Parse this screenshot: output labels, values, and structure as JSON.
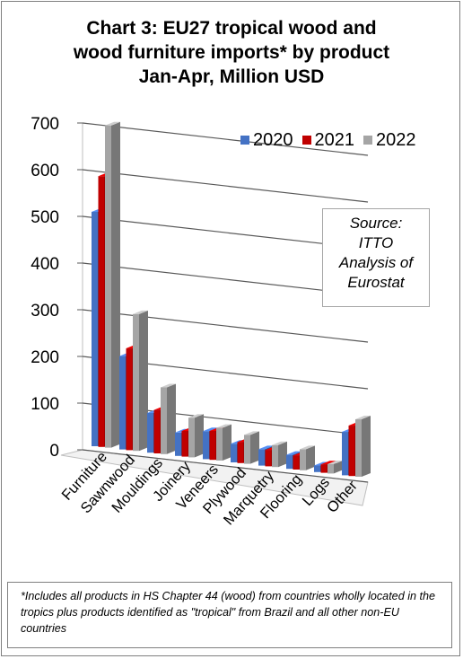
{
  "title": {
    "line1": "Chart 3: EU27 tropical wood and",
    "line2": "wood furniture imports* by product",
    "line3": "Jan-Apr, Million USD"
  },
  "source": {
    "line1": "Source:",
    "line2": "ITTO",
    "line3": "Analysis of",
    "line4": "Eurostat"
  },
  "footnote": "*Includes all products in HS Chapter 44 (wood) from countries wholly located in the tropics plus products identified as \"tropical\" from Brazil and all other non-EU countries",
  "chart_data": {
    "type": "bar",
    "title": "Chart 3: EU27 tropical wood and wood furniture imports* by product Jan-Apr, Million USD",
    "categories": [
      "Furniture",
      "Sawnwood",
      "Mouldings",
      "Joinery",
      "Veneers",
      "Plywood",
      "Marquetry",
      "Flooring",
      "Logs",
      "Other"
    ],
    "series": [
      {
        "name": "2020",
        "color": "#4472C4",
        "values": [
          502,
          200,
          85,
          50,
          60,
          40,
          35,
          30,
          14,
          93
        ]
      },
      {
        "name": "2021",
        "color": "#C00000",
        "values": [
          580,
          218,
          93,
          55,
          62,
          45,
          35,
          30,
          18,
          108
        ]
      },
      {
        "name": "2022",
        "color": "#A5A5A5",
        "values": [
          690,
          293,
          143,
          85,
          70,
          62,
          47,
          45,
          20,
          123
        ]
      }
    ],
    "ylim": [
      0,
      700
    ],
    "yticks": [
      0,
      100,
      200,
      300,
      400,
      500,
      600,
      700
    ],
    "grid": true,
    "legend_position": "top-right",
    "style": "3d-clustered-column"
  }
}
